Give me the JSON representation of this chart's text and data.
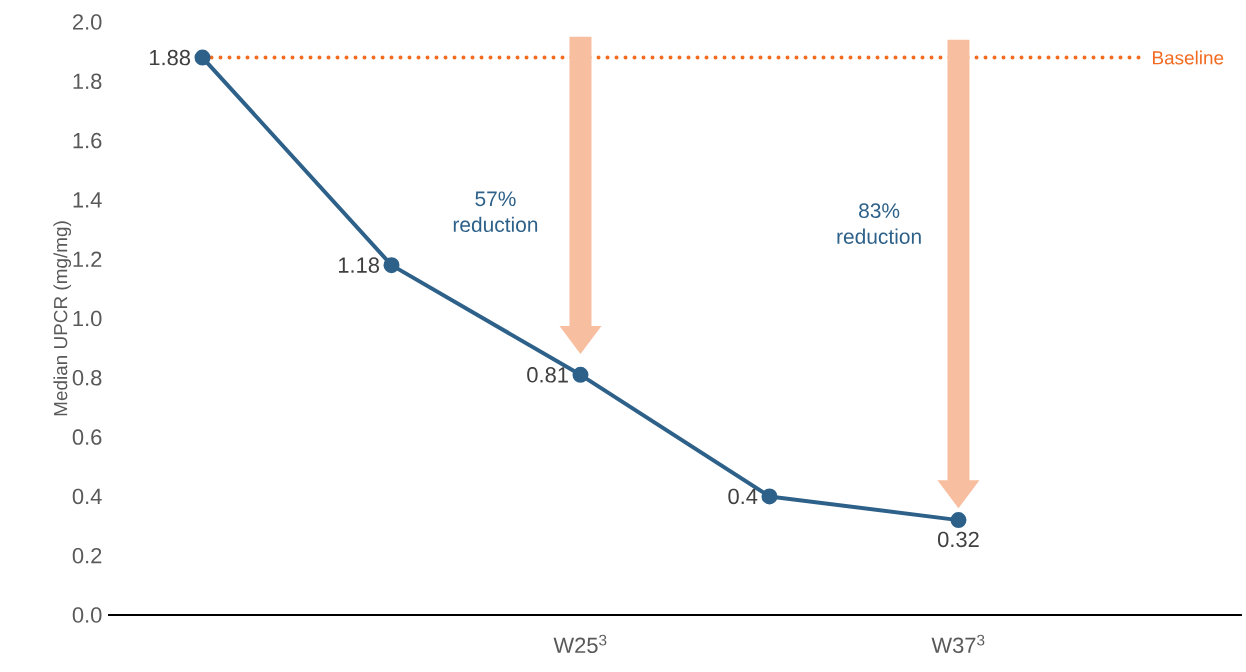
{
  "chart_data": {
    "type": "line",
    "ylabel": "Median UPCR (mg/mg)",
    "categories": [
      null,
      null,
      "W25$^{3}$",
      null,
      "W37$^{3}$",
      null
    ],
    "series": [
      {
        "color": "#2e6189",
        "values": [
          1.88,
          1.18,
          0.81,
          0.4,
          0.32,
          null
        ]
      }
    ],
    "ylim": [
      0,
      2.0
    ],
    "yticks": [
      {
        "value": 0,
        "label": "0.0"
      },
      {
        "value": 0.2,
        "label": "0.2"
      },
      {
        "value": 0.4,
        "label": "0.4"
      },
      {
        "value": 0.6,
        "label": "0.6"
      },
      {
        "value": 0.8,
        "label": "0.8"
      },
      {
        "value": 1.0,
        "label": "1.0"
      },
      {
        "value": 1.2,
        "label": "1.2"
      },
      {
        "value": 1.4,
        "label": "1.4"
      },
      {
        "value": 1.6,
        "label": "1.6"
      },
      {
        "value": 1.8,
        "label": "1.8"
      },
      {
        "value": 2.0,
        "label": "2.0"
      }
    ],
    "ref_lines": [
      {
        "axis": "y",
        "value": 1.88,
        "label": "Baseline",
        "color": "#f26b21",
        "line_style": "dotted"
      }
    ],
    "annotations": [
      "57% reduction",
      "83% reduction"
    ],
    "data_labels": true,
    "marker": "circle",
    "line_style": "solid"
  }
}
